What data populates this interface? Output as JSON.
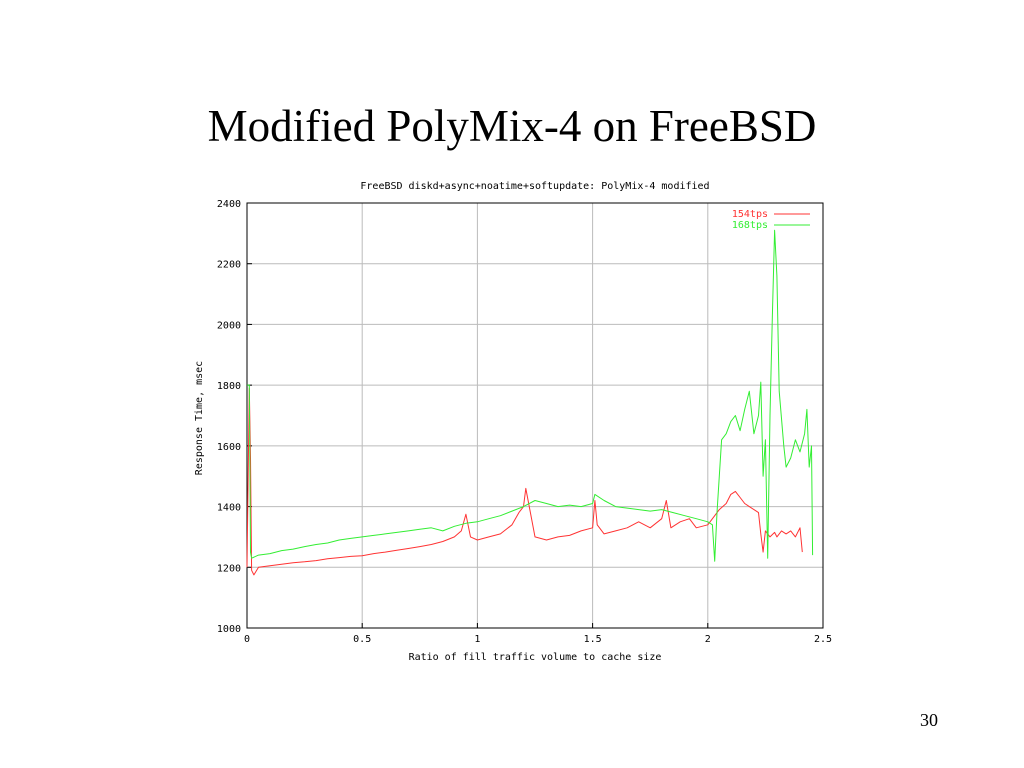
{
  "slide": {
    "title": "Modified PolyMix-4 on FreeBSD",
    "page_number": "30"
  },
  "colors": {
    "series_154": "#ff3333",
    "series_168": "#33ee33",
    "grid": "#bbbbbb",
    "axis": "#000000"
  },
  "chart_data": {
    "type": "line",
    "title": "FreeBSD diskd+async+noatime+softupdate: PolyMix-4 modified",
    "xlabel": "Ratio of fill traffic volume to cache size",
    "ylabel": "Response Time, msec",
    "xlim": [
      0,
      2.5
    ],
    "ylim": [
      1000,
      2400
    ],
    "xticks": [
      0,
      0.5,
      1,
      1.5,
      2,
      2.5
    ],
    "xtick_labels": [
      "0",
      "0.5",
      "1",
      "1.5",
      "2",
      "2.5"
    ],
    "yticks": [
      1000,
      1200,
      1400,
      1600,
      1800,
      2000,
      2200,
      2400
    ],
    "ytick_labels": [
      "1000",
      "1200",
      "1400",
      "1600",
      "1800",
      "2000",
      "2200",
      "2400"
    ],
    "grid": true,
    "legend_position": "top-right",
    "series": [
      {
        "name": "154tps",
        "color": "#ff3333",
        "points": [
          [
            0.0,
            1200
          ],
          [
            0.01,
            1790
          ],
          [
            0.015,
            1560
          ],
          [
            0.02,
            1190
          ],
          [
            0.03,
            1175
          ],
          [
            0.05,
            1200
          ],
          [
            0.1,
            1205
          ],
          [
            0.15,
            1210
          ],
          [
            0.2,
            1215
          ],
          [
            0.25,
            1218
          ],
          [
            0.3,
            1222
          ],
          [
            0.35,
            1228
          ],
          [
            0.4,
            1232
          ],
          [
            0.45,
            1236
          ],
          [
            0.5,
            1238
          ],
          [
            0.55,
            1245
          ],
          [
            0.6,
            1250
          ],
          [
            0.65,
            1256
          ],
          [
            0.7,
            1262
          ],
          [
            0.75,
            1268
          ],
          [
            0.8,
            1275
          ],
          [
            0.85,
            1285
          ],
          [
            0.9,
            1300
          ],
          [
            0.93,
            1320
          ],
          [
            0.95,
            1375
          ],
          [
            0.97,
            1300
          ],
          [
            1.0,
            1290
          ],
          [
            1.05,
            1300
          ],
          [
            1.1,
            1310
          ],
          [
            1.15,
            1340
          ],
          [
            1.18,
            1380
          ],
          [
            1.2,
            1400
          ],
          [
            1.21,
            1460
          ],
          [
            1.22,
            1420
          ],
          [
            1.23,
            1380
          ],
          [
            1.25,
            1300
          ],
          [
            1.3,
            1290
          ],
          [
            1.35,
            1300
          ],
          [
            1.4,
            1305
          ],
          [
            1.45,
            1320
          ],
          [
            1.5,
            1330
          ],
          [
            1.51,
            1420
          ],
          [
            1.52,
            1340
          ],
          [
            1.55,
            1310
          ],
          [
            1.6,
            1320
          ],
          [
            1.65,
            1330
          ],
          [
            1.7,
            1350
          ],
          [
            1.75,
            1330
          ],
          [
            1.8,
            1360
          ],
          [
            1.82,
            1420
          ],
          [
            1.84,
            1330
          ],
          [
            1.88,
            1350
          ],
          [
            1.92,
            1360
          ],
          [
            1.95,
            1330
          ],
          [
            2.0,
            1340
          ],
          [
            2.03,
            1370
          ],
          [
            2.05,
            1390
          ],
          [
            2.08,
            1410
          ],
          [
            2.1,
            1440
          ],
          [
            2.12,
            1450
          ],
          [
            2.14,
            1430
          ],
          [
            2.16,
            1410
          ],
          [
            2.18,
            1400
          ],
          [
            2.2,
            1390
          ],
          [
            2.22,
            1380
          ],
          [
            2.23,
            1310
          ],
          [
            2.24,
            1250
          ],
          [
            2.25,
            1320
          ],
          [
            2.27,
            1300
          ],
          [
            2.29,
            1315
          ],
          [
            2.3,
            1300
          ],
          [
            2.32,
            1320
          ],
          [
            2.34,
            1310
          ],
          [
            2.36,
            1320
          ],
          [
            2.38,
            1300
          ],
          [
            2.4,
            1330
          ],
          [
            2.41,
            1250
          ]
        ]
      },
      {
        "name": "168tps",
        "color": "#33ee33",
        "points": [
          [
            0.0,
            1800
          ],
          [
            0.01,
            1800
          ],
          [
            0.015,
            1250
          ],
          [
            0.02,
            1230
          ],
          [
            0.05,
            1240
          ],
          [
            0.1,
            1245
          ],
          [
            0.15,
            1255
          ],
          [
            0.2,
            1260
          ],
          [
            0.25,
            1268
          ],
          [
            0.3,
            1275
          ],
          [
            0.35,
            1280
          ],
          [
            0.4,
            1290
          ],
          [
            0.45,
            1295
          ],
          [
            0.5,
            1300
          ],
          [
            0.55,
            1305
          ],
          [
            0.6,
            1310
          ],
          [
            0.65,
            1315
          ],
          [
            0.7,
            1320
          ],
          [
            0.75,
            1325
          ],
          [
            0.8,
            1330
          ],
          [
            0.85,
            1320
          ],
          [
            0.9,
            1335
          ],
          [
            0.95,
            1345
          ],
          [
            1.0,
            1350
          ],
          [
            1.05,
            1360
          ],
          [
            1.1,
            1370
          ],
          [
            1.15,
            1385
          ],
          [
            1.2,
            1400
          ],
          [
            1.25,
            1420
          ],
          [
            1.3,
            1410
          ],
          [
            1.35,
            1400
          ],
          [
            1.4,
            1405
          ],
          [
            1.45,
            1400
          ],
          [
            1.5,
            1410
          ],
          [
            1.51,
            1440
          ],
          [
            1.55,
            1420
          ],
          [
            1.6,
            1400
          ],
          [
            1.65,
            1395
          ],
          [
            1.7,
            1390
          ],
          [
            1.75,
            1385
          ],
          [
            1.8,
            1390
          ],
          [
            1.85,
            1380
          ],
          [
            1.9,
            1370
          ],
          [
            1.95,
            1360
          ],
          [
            2.0,
            1350
          ],
          [
            2.02,
            1340
          ],
          [
            2.03,
            1220
          ],
          [
            2.04,
            1380
          ],
          [
            2.05,
            1500
          ],
          [
            2.06,
            1620
          ],
          [
            2.08,
            1640
          ],
          [
            2.1,
            1680
          ],
          [
            2.12,
            1700
          ],
          [
            2.14,
            1650
          ],
          [
            2.16,
            1720
          ],
          [
            2.18,
            1780
          ],
          [
            2.2,
            1640
          ],
          [
            2.22,
            1700
          ],
          [
            2.23,
            1810
          ],
          [
            2.24,
            1500
          ],
          [
            2.25,
            1620
          ],
          [
            2.26,
            1230
          ],
          [
            2.27,
            1700
          ],
          [
            2.28,
            2020
          ],
          [
            2.29,
            2310
          ],
          [
            2.3,
            2160
          ],
          [
            2.31,
            1780
          ],
          [
            2.33,
            1600
          ],
          [
            2.34,
            1530
          ],
          [
            2.36,
            1560
          ],
          [
            2.38,
            1620
          ],
          [
            2.4,
            1580
          ],
          [
            2.42,
            1640
          ],
          [
            2.43,
            1720
          ],
          [
            2.44,
            1530
          ],
          [
            2.45,
            1600
          ],
          [
            2.455,
            1240
          ]
        ]
      }
    ]
  }
}
